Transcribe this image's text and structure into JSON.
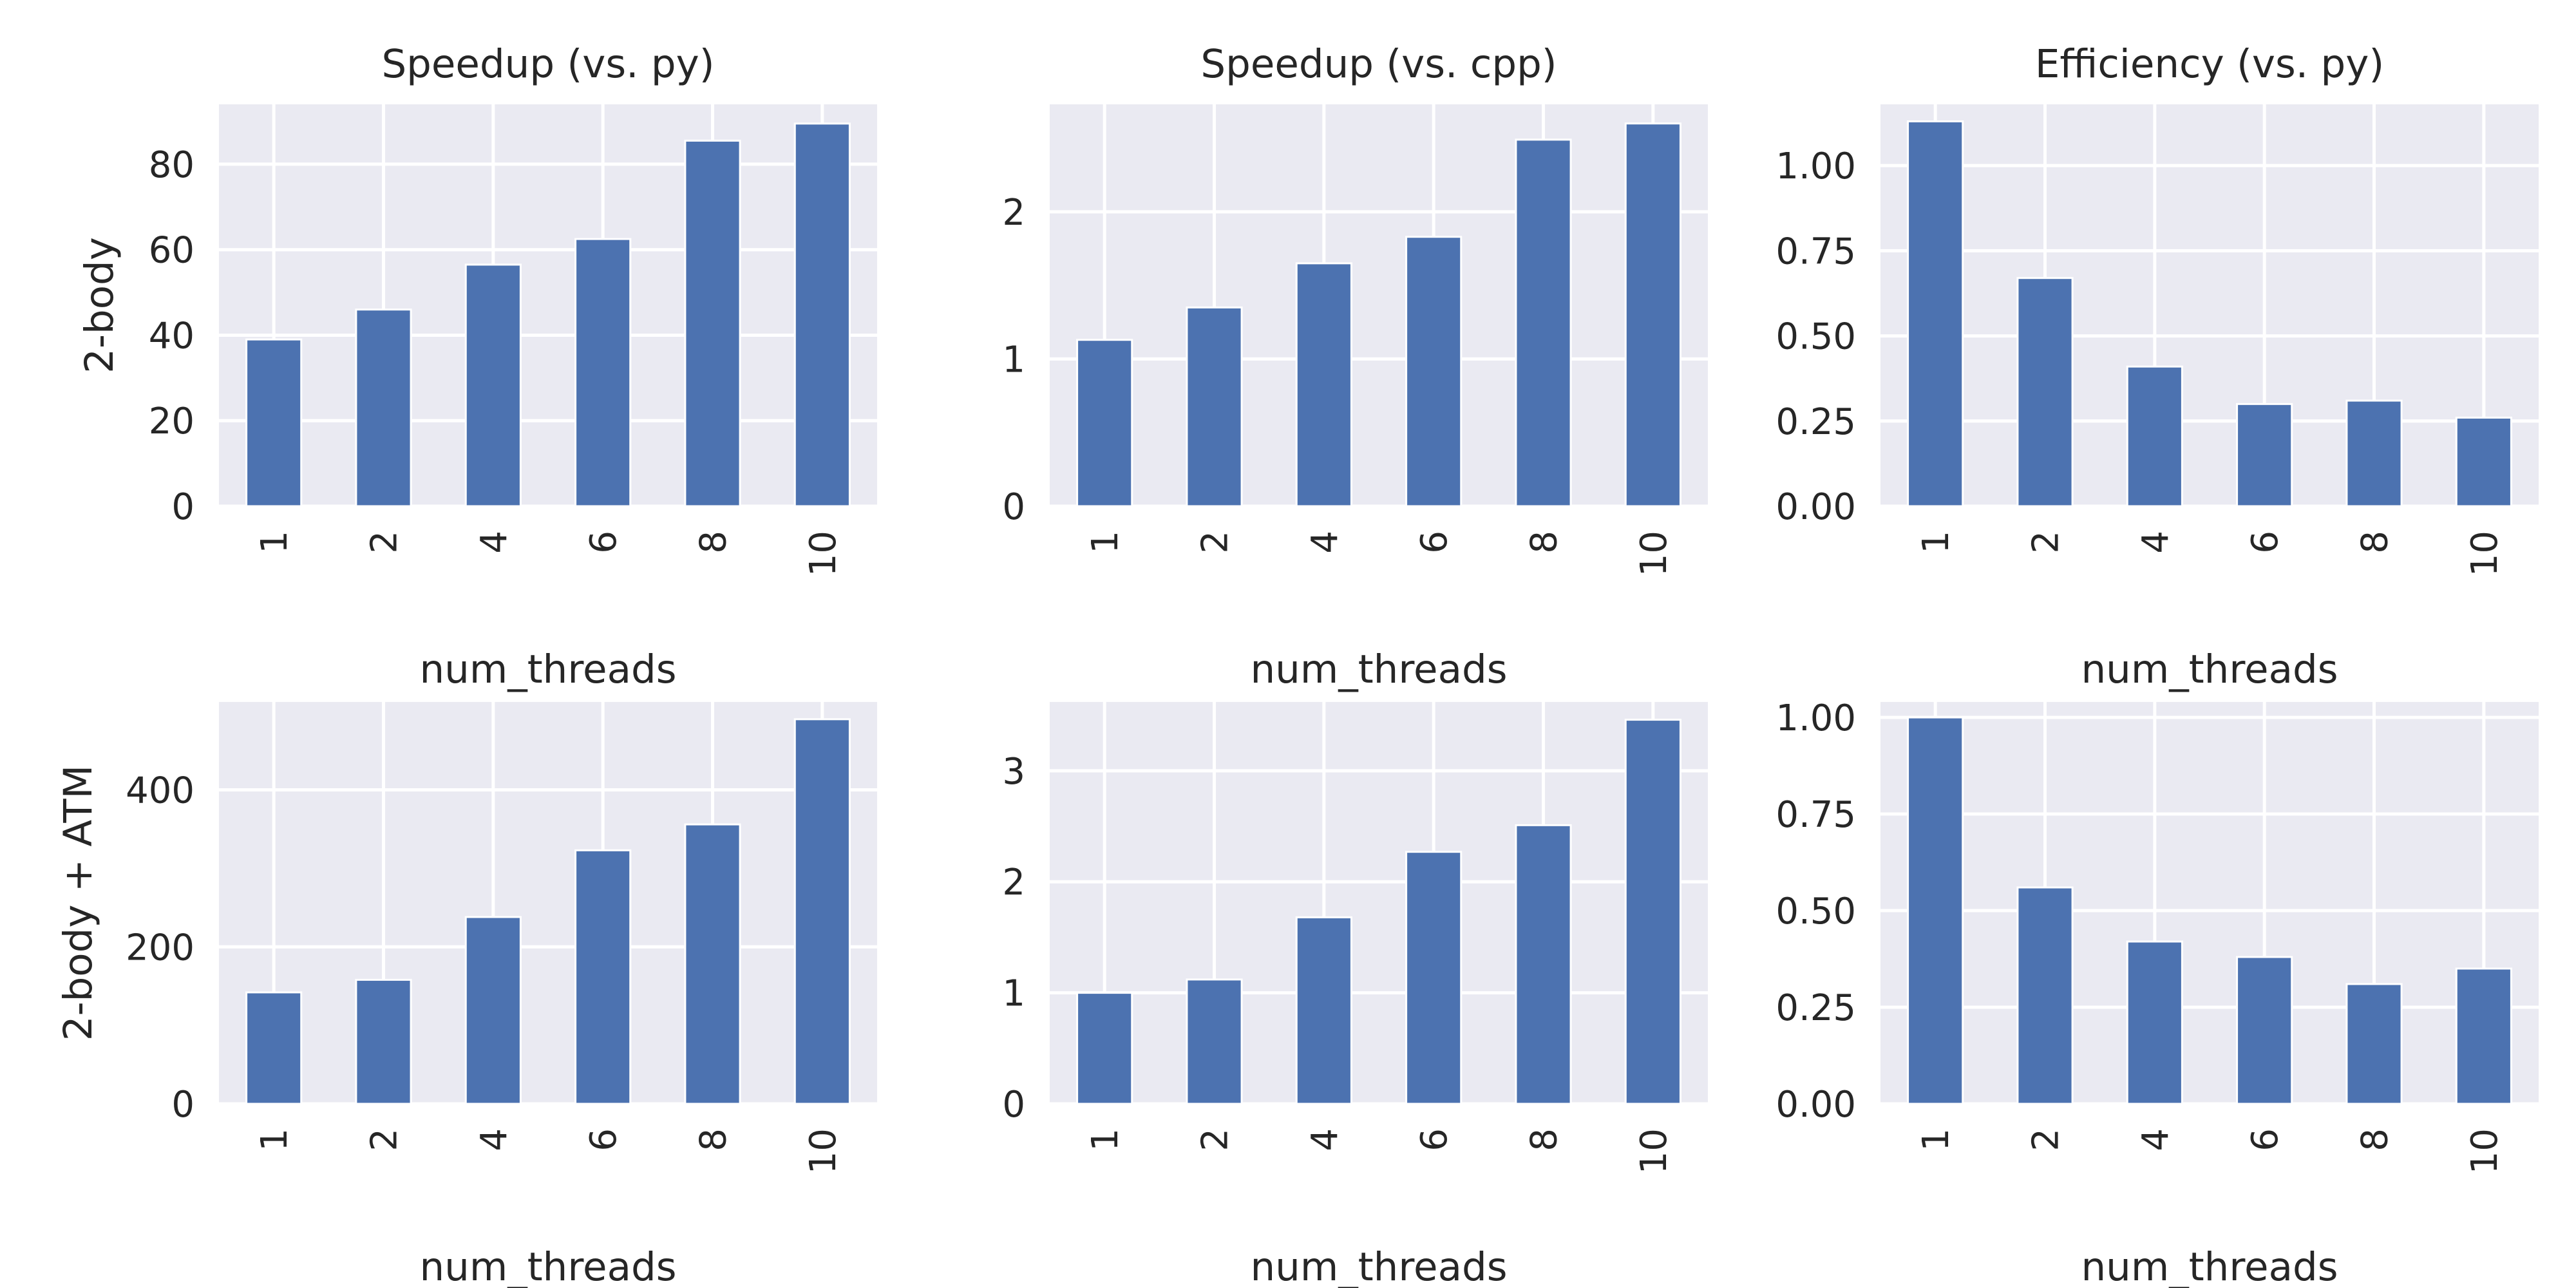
{
  "chart_data": [
    {
      "type": "bar",
      "row_label": "2-body",
      "title": "Speedup (vs. py)",
      "xlabel": "num_threads",
      "ylabel": "2-body",
      "categories": [
        "1",
        "2",
        "4",
        "6",
        "8",
        "10"
      ],
      "values": [
        39,
        46,
        56.5,
        62.5,
        85.5,
        89.5
      ],
      "ylim": [
        0,
        94
      ],
      "yticks": [
        0,
        20,
        40,
        60,
        80
      ],
      "ytick_labels": [
        "0",
        "20",
        "40",
        "60",
        "80"
      ],
      "grid": true,
      "color": "#4c72b0"
    },
    {
      "type": "bar",
      "row_label": "2-body",
      "title": "Speedup (vs. cpp)",
      "xlabel": "num_threads",
      "ylabel": "",
      "categories": [
        "1",
        "2",
        "4",
        "6",
        "8",
        "10"
      ],
      "values": [
        1.13,
        1.35,
        1.65,
        1.83,
        2.49,
        2.6
      ],
      "ylim": [
        0,
        2.73
      ],
      "yticks": [
        0,
        1,
        2
      ],
      "ytick_labels": [
        "0",
        "1",
        "2"
      ],
      "grid": true,
      "color": "#4c72b0"
    },
    {
      "type": "bar",
      "row_label": "2-body",
      "title": "Efficiency (vs. py)",
      "xlabel": "num_threads",
      "ylabel": "",
      "categories": [
        "1",
        "2",
        "4",
        "6",
        "8",
        "10"
      ],
      "values": [
        1.13,
        0.67,
        0.41,
        0.3,
        0.31,
        0.26
      ],
      "ylim": [
        0,
        1.18
      ],
      "yticks": [
        0,
        0.25,
        0.5,
        0.75,
        1.0
      ],
      "ytick_labels": [
        "0.00",
        "0.25",
        "0.50",
        "0.75",
        "1.00"
      ],
      "grid": true,
      "color": "#4c72b0"
    },
    {
      "type": "bar",
      "row_label": "2-body + ATM",
      "title": "",
      "xlabel": "num_threads",
      "ylabel": "2-body + ATM",
      "categories": [
        "1",
        "2",
        "4",
        "6",
        "8",
        "10"
      ],
      "values": [
        142,
        158,
        238,
        323,
        356,
        490
      ],
      "ylim": [
        0,
        512
      ],
      "yticks": [
        0,
        200,
        400
      ],
      "ytick_labels": [
        "0",
        "200",
        "400"
      ],
      "grid": true,
      "color": "#4c72b0"
    },
    {
      "type": "bar",
      "row_label": "2-body + ATM",
      "title": "",
      "xlabel": "num_threads",
      "ylabel": "",
      "categories": [
        "1",
        "2",
        "4",
        "6",
        "8",
        "10"
      ],
      "values": [
        1.0,
        1.12,
        1.68,
        2.27,
        2.51,
        3.46
      ],
      "ylim": [
        0,
        3.62
      ],
      "yticks": [
        0,
        1,
        2,
        3
      ],
      "ytick_labels": [
        "0",
        "1",
        "2",
        "3"
      ],
      "grid": true,
      "color": "#4c72b0"
    },
    {
      "type": "bar",
      "row_label": "2-body + ATM",
      "title": "",
      "xlabel": "num_threads",
      "ylabel": "",
      "categories": [
        "1",
        "2",
        "4",
        "6",
        "8",
        "10"
      ],
      "values": [
        1.0,
        0.56,
        0.42,
        0.38,
        0.31,
        0.35
      ],
      "ylim": [
        0,
        1.04
      ],
      "yticks": [
        0,
        0.25,
        0.5,
        0.75,
        1.0
      ],
      "ytick_labels": [
        "0.00",
        "0.25",
        "0.50",
        "0.75",
        "1.00"
      ],
      "grid": true,
      "color": "#4c72b0"
    }
  ]
}
